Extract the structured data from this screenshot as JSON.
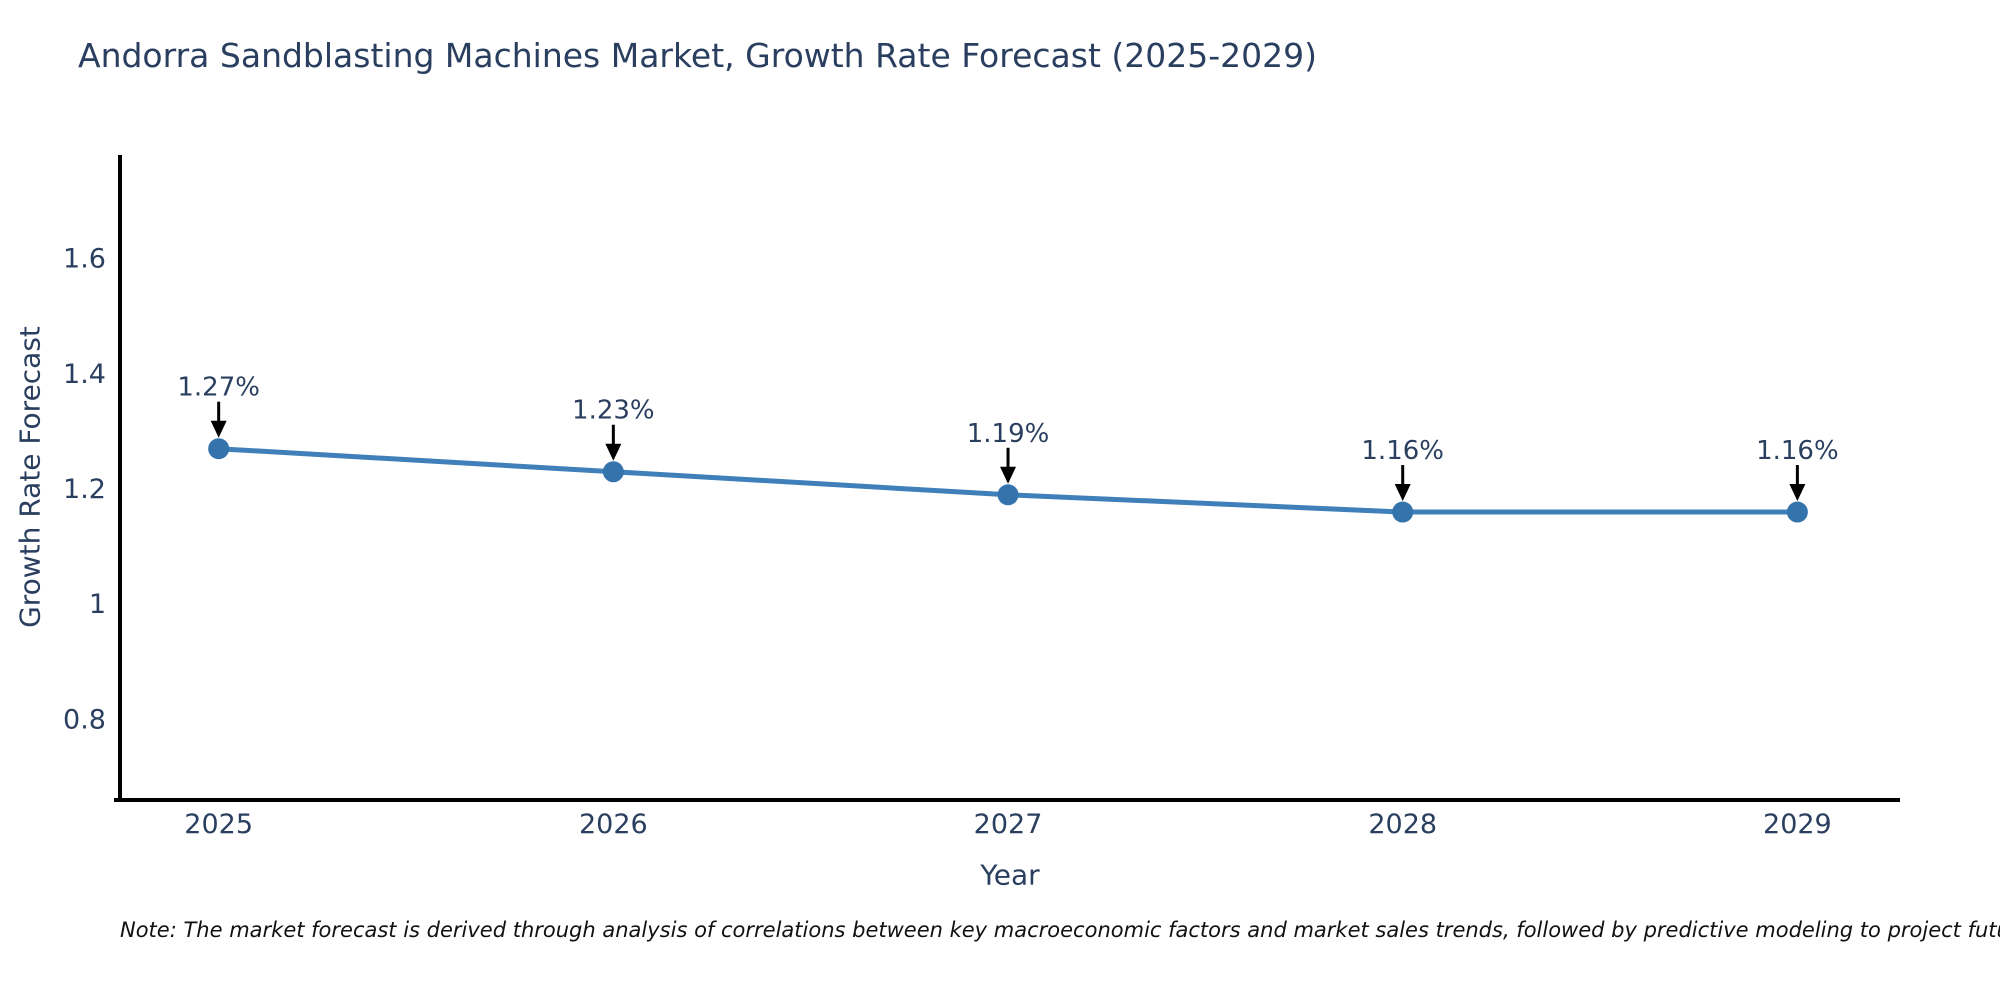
{
  "page": {
    "note": "Note: The market forecast is derived through analysis of correlations between key macroeconomic factors and market sales trends, followed by predictive modeling to project future sales"
  },
  "chart_data": {
    "type": "line",
    "title": "Andorra Sandblasting Machines Market, Growth Rate Forecast (2025-2029)",
    "xlabel": "Year",
    "ylabel": "Growth Rate Forecast",
    "x": [
      2025,
      2026,
      2027,
      2028,
      2029
    ],
    "series": [
      {
        "name": "Growth Rate Forecast",
        "values": [
          1.27,
          1.23,
          1.19,
          1.16,
          1.16
        ]
      }
    ],
    "point_labels": [
      "1.27%",
      "1.23%",
      "1.19%",
      "1.16%",
      "1.16%"
    ],
    "yticks": [
      0.8,
      1,
      1.2,
      1.4,
      1.6
    ],
    "ylim": [
      0.66,
      1.78
    ],
    "xlim": [
      2024.75,
      2029.26
    ],
    "grid": false,
    "legend": "none",
    "line_color": "#3f7fba",
    "marker_color": "#3573ad",
    "axis_color": "#000000",
    "text_color": "#2a3f5f",
    "annotation_arrow_color": "#000000"
  }
}
